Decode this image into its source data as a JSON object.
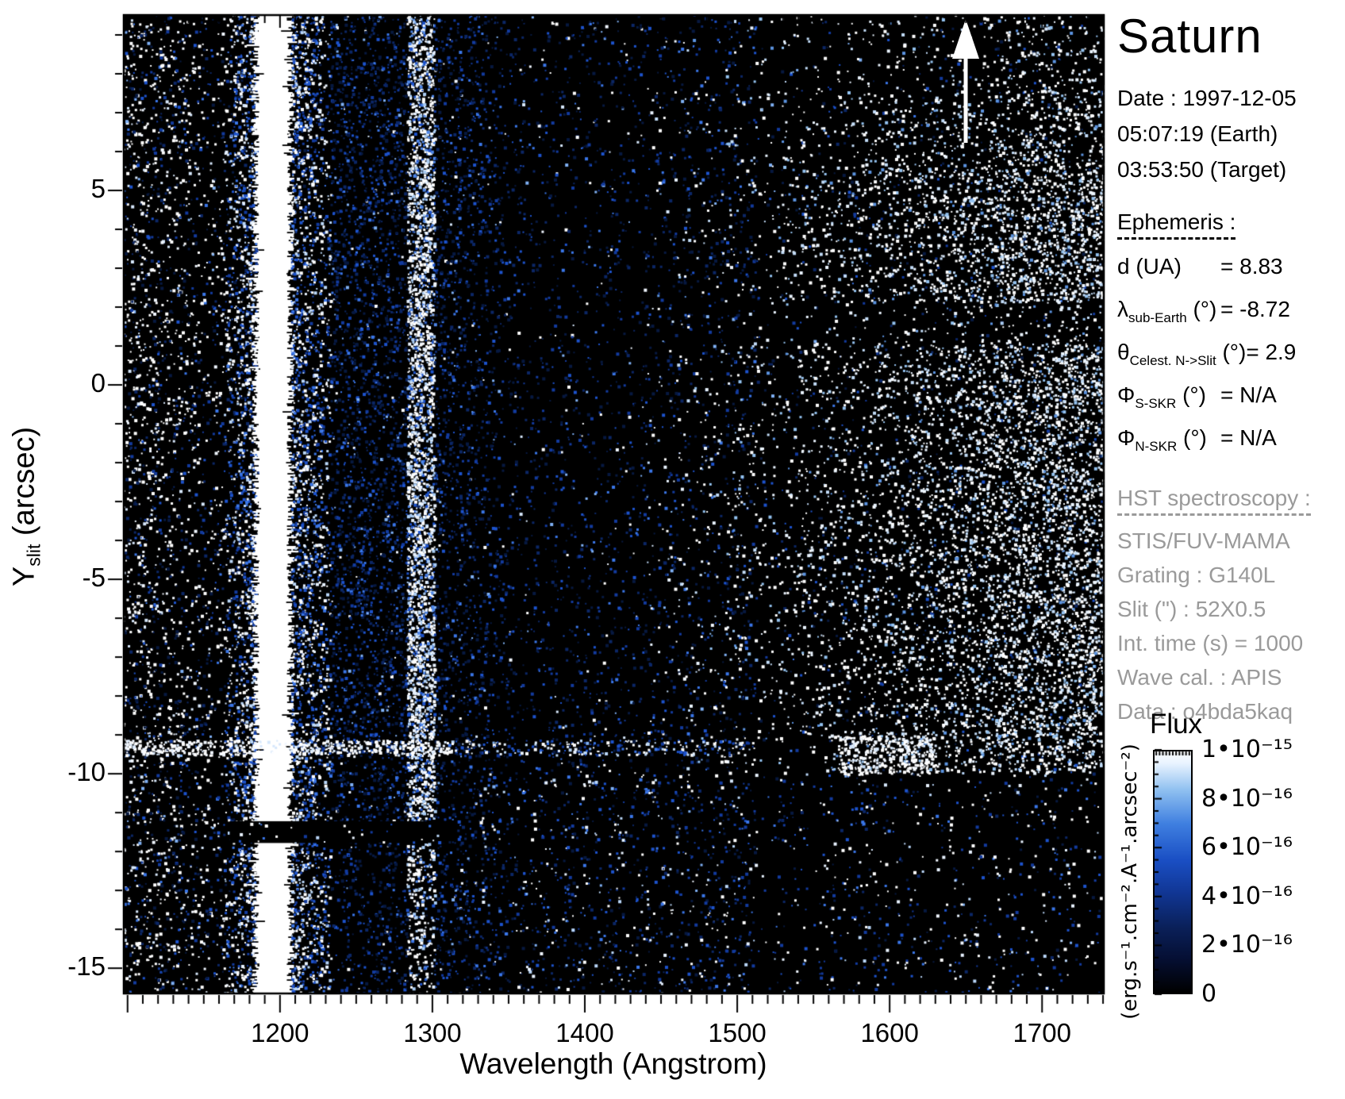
{
  "title": "Saturn",
  "observation": {
    "date_line": "Date : 1997-12-05",
    "earth_time": "05:07:19 (Earth)",
    "target_time": "03:53:50 (Target)"
  },
  "ephemeris": {
    "heading": "Ephemeris :",
    "rows": [
      {
        "sym": "d",
        "sub": "",
        "unit": " (UA)",
        "value": "= 8.83"
      },
      {
        "sym": "λ",
        "sub": "sub-Earth",
        "unit": " (°)",
        "value": "= -8.72"
      },
      {
        "sym": "θ",
        "sub": "Celest. N->Slit",
        "unit": " (°)",
        "value": "= 2.9"
      },
      {
        "sym": "Φ",
        "sub": "S-SKR",
        "unit": " (°)",
        "value": "= N/A"
      },
      {
        "sym": "Φ",
        "sub": "N-SKR",
        "unit": " (°)",
        "value": "= N/A"
      }
    ]
  },
  "hst": {
    "heading": "HST spectroscopy :",
    "lines": [
      "STIS/FUV-MAMA",
      "Grating : G140L",
      "Slit (\") : 52X0.5",
      "Int. time (s) = 1000",
      "Wave cal. : APIS",
      "Data : o4bda5kaq"
    ]
  },
  "colorbar": {
    "title": "Flux",
    "unit_label": "(erg.s⁻¹.cm⁻².A⁻¹.arcsec⁻²)",
    "ticks": [
      {
        "label": "1•10⁻¹⁵",
        "value": 1.0
      },
      {
        "label": "8•10⁻¹⁶",
        "value": 0.8
      },
      {
        "label": "6•10⁻¹⁶",
        "value": 0.6
      },
      {
        "label": "4•10⁻¹⁶",
        "value": 0.4
      },
      {
        "label": "2•10⁻¹⁶",
        "value": 0.2
      },
      {
        "label": "0",
        "value": 0.0
      }
    ],
    "scale_max": "1e-15",
    "scale_min": "0"
  },
  "chart_data": {
    "type": "heatmap",
    "title": "Saturn",
    "xlabel": "Wavelength (Angstrom)",
    "ylabel_main": "Y",
    "ylabel_sub": "slit",
    "ylabel_unit": " (arcsec)",
    "x_range": [
      1097,
      1741
    ],
    "y_range": [
      -15.67,
      9.53
    ],
    "x_major_ticks": [
      1200,
      1300,
      1400,
      1500,
      1600,
      1700
    ],
    "x_minor_step": 10,
    "y_major_ticks": [
      5,
      0,
      -5,
      -10,
      -15
    ],
    "y_minor_step": 1,
    "flux_range": [
      0,
      1e-15
    ],
    "legend_position": "right-colorbar",
    "grid": false,
    "palettes": {
      "blue": {
        "colors": [
          "#061840",
          "#0b2666",
          "#123a9e",
          "#1c52cc",
          "#3a76e8",
          "#7fb0f4"
        ],
        "weights": [
          5,
          4,
          3,
          2,
          1,
          0.5
        ]
      },
      "white": {
        "colors": [
          "#ffffff",
          "#f0f6ff",
          "#d6e7fb"
        ],
        "weights": [
          5,
          2,
          1
        ]
      },
      "mix": {
        "colors": [
          "#ffffff",
          "#e8f2ff",
          "#b9d6f8",
          "#1c52cc",
          "#123a9e",
          "#3a76e8"
        ],
        "weights": [
          3,
          1.5,
          1.5,
          2,
          2,
          1
        ]
      },
      "mix_bright": {
        "colors": [
          "#ffffff",
          "#e8f2ff",
          "#aacdf5",
          "#4d85e8",
          "#1c52cc"
        ],
        "weights": [
          4,
          2,
          1.5,
          1,
          1
        ]
      },
      "disk": {
        "colors": [
          "#ffffff",
          "#eaf4ff",
          "#c2dcf8",
          "#93c2f0",
          "#5b93e0"
        ],
        "weights": [
          4,
          2.5,
          1.5,
          1,
          0.5
        ]
      }
    },
    "features": [
      {
        "name": "background-faint-noise",
        "type": "speckle",
        "x": [
          1097,
          1741
        ],
        "y": [
          -15.67,
          9.53
        ],
        "density": 0.016,
        "palette": "blue"
      },
      {
        "name": "background-sparse-white",
        "type": "speckle",
        "x": [
          1097,
          1741
        ],
        "y": [
          -15.67,
          9.53
        ],
        "density": 0.004,
        "palette": "white"
      },
      {
        "name": "left-edge-airglow-white",
        "type": "speckle",
        "x": [
          1097,
          1175
        ],
        "y": [
          -15.67,
          9.53
        ],
        "density": {
          "from": 0.11,
          "to": 0.025,
          "power": 1
        },
        "palette": "white"
      },
      {
        "name": "left-edge-airglow-blue",
        "type": "speckle",
        "x": [
          1097,
          1185
        ],
        "y": [
          -15.67,
          9.53
        ],
        "density": {
          "from": 0.05,
          "to": 0.02,
          "power": 1
        },
        "palette": "blue"
      },
      {
        "name": "lyman-alpha-halo-left",
        "type": "speckle",
        "x": [
          1163,
          1184
        ],
        "y": [
          -15.67,
          9.53
        ],
        "density": {
          "from": 0.1,
          "to": 0.5,
          "power": 1
        },
        "palette": "mix"
      },
      {
        "name": "lyman-alpha-core-band",
        "type": "solid-band",
        "x": [
          1184,
          1207
        ],
        "y": [
          -15.67,
          9.53
        ],
        "color": "#ffffff",
        "edge_jitter": 5
      },
      {
        "name": "lyman-alpha-halo-right",
        "type": "speckle",
        "x": [
          1207,
          1233
        ],
        "y": [
          -15.67,
          9.53
        ],
        "density": {
          "from": 0.5,
          "to": 0.2,
          "power": 1
        },
        "palette": "mix"
      },
      {
        "name": "inter-band-emission",
        "type": "speckle",
        "x": [
          1233,
          1283
        ],
        "y": [
          -15.67,
          9.53
        ],
        "density": 0.2,
        "palette": "blue",
        "y_factors": [
          [
            -15.67,
            -11.7,
            0.6
          ]
        ]
      },
      {
        "name": "oi-1304-emission-band",
        "type": "speckle",
        "x": [
          1283,
          1301
        ],
        "y": [
          -15.67,
          9.53
        ],
        "density": 0.72,
        "palette": "mix_bright",
        "y_factors": [
          [
            -15.67,
            -11.7,
            0.45
          ]
        ]
      },
      {
        "name": "oi-band-fade",
        "type": "speckle",
        "x": [
          1301,
          1355
        ],
        "y": [
          -15.67,
          9.53
        ],
        "density": {
          "from": 0.18,
          "to": 0.05,
          "power": 1
        },
        "palette": "blue"
      },
      {
        "name": "faint-blue-field",
        "type": "speckle",
        "x": [
          1355,
          1512
        ],
        "y": [
          -15.67,
          9.53
        ],
        "density": 0.04,
        "palette": "blue"
      },
      {
        "name": "disk-left-fringe",
        "type": "speckle",
        "x": [
          1440,
          1512
        ],
        "y": [
          -9.95,
          9.53
        ],
        "density": {
          "from": 0.012,
          "to": 0.05,
          "power": 1
        },
        "palette": "disk",
        "y_factors": [
          [
            7.6,
            9.53,
            0.3
          ],
          [
            5.6,
            7.6,
            0.65
          ],
          [
            1.05,
            2.15,
            0.28
          ]
        ]
      },
      {
        "name": "disk-reflected-continuum",
        "type": "speckle",
        "x": [
          1512,
          1741
        ],
        "y": [
          -9.95,
          9.53
        ],
        "density": {
          "from": 0.05,
          "to": 0.4,
          "power": 1.3
        },
        "palette": "disk",
        "y_factors": [
          [
            7.6,
            9.53,
            0.3
          ],
          [
            5.6,
            7.6,
            0.65
          ],
          [
            1.05,
            2.15,
            0.28
          ],
          [
            -9.95,
            -9.3,
            0.8
          ]
        ]
      },
      {
        "name": "ring-ansa-streak-bright",
        "type": "speckle",
        "x": [
          1097,
          1312
        ],
        "y": [
          -9.5,
          -9.12
        ],
        "density": 0.55,
        "palette": "white"
      },
      {
        "name": "ring-ansa-streak-faint",
        "type": "speckle",
        "x": [
          1312,
          1512
        ],
        "y": [
          -9.5,
          -9.12
        ],
        "density": 0.26,
        "palette": "mix"
      },
      {
        "name": "ring-bright-clump",
        "type": "speckle",
        "x": [
          1565,
          1630
        ],
        "y": [
          -10.0,
          -9.0
        ],
        "density": 0.5,
        "palette": "white"
      },
      {
        "name": "below-rings-sparse",
        "type": "speckle",
        "x": [
          1330,
          1741
        ],
        "y": [
          -15.67,
          -9.95
        ],
        "density": 0.028,
        "palette": "mix"
      },
      {
        "name": "detector-gap-row",
        "type": "blackout",
        "x": [
          1167,
          1310
        ],
        "y": [
          -11.78,
          -11.22
        ],
        "sprinkle": 0.035,
        "palette": "mix"
      }
    ],
    "annotations": {
      "north_arrow": {
        "lambda": 1650,
        "y_tip": 9.4,
        "y_base": 6.3,
        "color": "#ffffff"
      }
    }
  }
}
